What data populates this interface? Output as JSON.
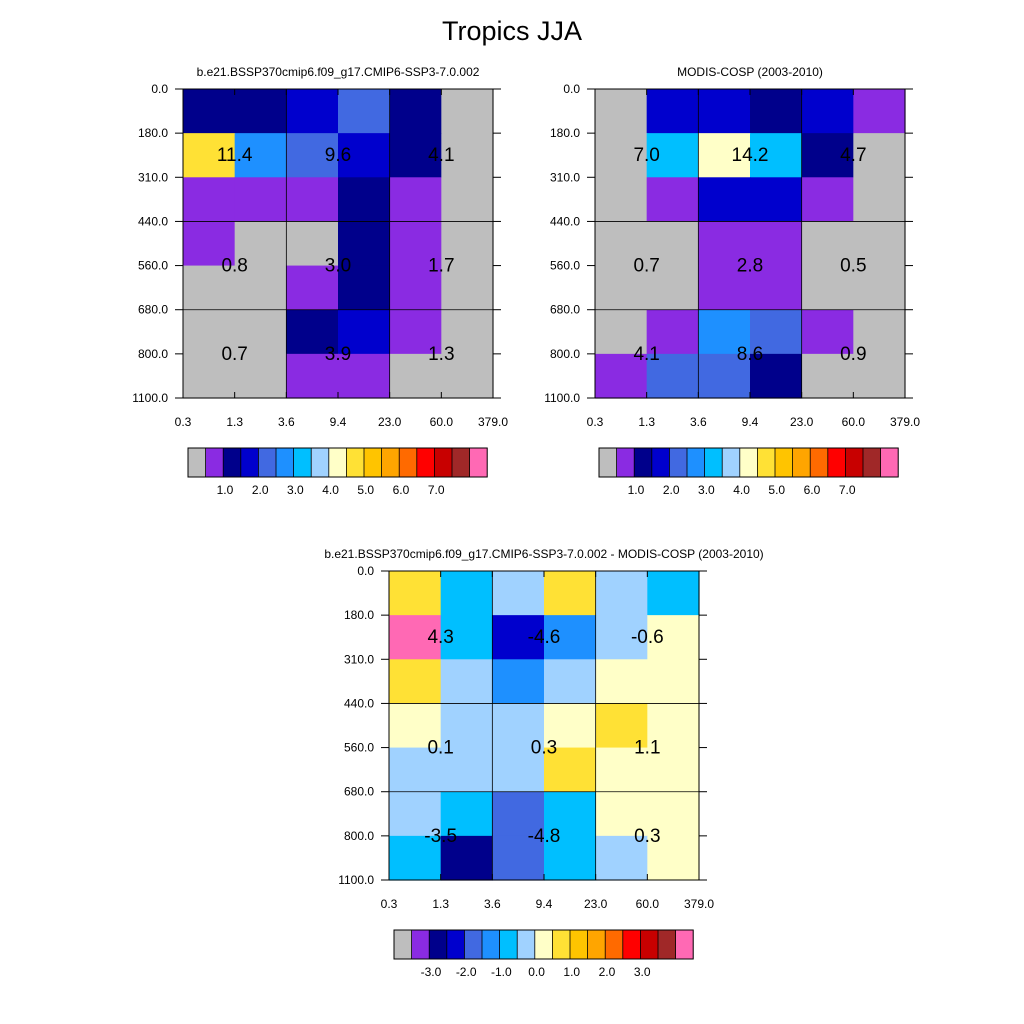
{
  "page_title": "Tropics JJA",
  "colors": {
    "abs_palette": [
      "#bebebe",
      "#8a2be2",
      "#00008b",
      "#0000cd",
      "#4169e1",
      "#1e90ff",
      "#00bfff",
      "#a0d2ff",
      "#ffffc8",
      "#ffe135",
      "#ffc400",
      "#ffa500",
      "#ff6a00",
      "#ff0000",
      "#c80000",
      "#a02828",
      "#ff69b4"
    ],
    "diff_palette": [
      "#bebebe",
      "#8a2be2",
      "#00008b",
      "#0000cd",
      "#4169e1",
      "#1e90ff",
      "#00bfff",
      "#a0d2ff",
      "#ffffc8",
      "#ffe135",
      "#ffc400",
      "#ffa500",
      "#ff6a00",
      "#ff0000",
      "#c80000",
      "#a02828",
      "#ff69b4"
    ]
  },
  "chart_data": [
    {
      "type": "heatmap",
      "title": "b.e21.BSSP370cmip6.f09_g17.CMIP6-SSP3-7.0.002",
      "x_tick_labels": [
        "0.3",
        "1.3",
        "3.6",
        "9.4",
        "23.0",
        "60.0",
        "379.0"
      ],
      "y_tick_labels": [
        "0.0",
        "180.0",
        "310.0",
        "440.0",
        "560.0",
        "680.0",
        "800.0",
        "1100.0"
      ],
      "grid": true,
      "cell_color_index": [
        [
          2,
          2,
          3,
          4,
          2,
          0
        ],
        [
          9,
          5,
          4,
          3,
          2,
          0
        ],
        [
          1,
          1,
          1,
          2,
          1,
          0
        ],
        [
          1,
          0,
          0,
          2,
          1,
          0
        ],
        [
          0,
          0,
          1,
          2,
          1,
          0
        ],
        [
          0,
          0,
          2,
          3,
          1,
          0
        ],
        [
          0,
          0,
          1,
          1,
          0,
          0
        ]
      ],
      "block_values": [
        [
          "11.4",
          "9.6",
          "4.1"
        ],
        [
          "0.8",
          "3.0",
          "1.7"
        ],
        [
          "0.7",
          "3.9",
          "1.3"
        ]
      ],
      "colorbar_labels": [
        "1.0",
        "2.0",
        "3.0",
        "4.0",
        "5.0",
        "6.0",
        "7.0"
      ]
    },
    {
      "type": "heatmap",
      "title": "MODIS-COSP (2003-2010)",
      "x_tick_labels": [
        "0.3",
        "1.3",
        "3.6",
        "9.4",
        "23.0",
        "60.0",
        "379.0"
      ],
      "y_tick_labels": [
        "0.0",
        "180.0",
        "310.0",
        "440.0",
        "560.0",
        "680.0",
        "800.0",
        "1100.0"
      ],
      "grid": true,
      "cell_color_index": [
        [
          0,
          3,
          3,
          2,
          3,
          1
        ],
        [
          0,
          6,
          8,
          6,
          2,
          0
        ],
        [
          0,
          1,
          3,
          3,
          1,
          0
        ],
        [
          0,
          0,
          1,
          1,
          0,
          0
        ],
        [
          0,
          0,
          1,
          1,
          0,
          0
        ],
        [
          0,
          1,
          5,
          4,
          1,
          0
        ],
        [
          1,
          4,
          4,
          2,
          0,
          0
        ]
      ],
      "block_values": [
        [
          "7.0",
          "14.2",
          "4.7"
        ],
        [
          "0.7",
          "2.8",
          "0.5"
        ],
        [
          "4.1",
          "8.6",
          "0.9"
        ]
      ],
      "colorbar_labels": [
        "1.0",
        "2.0",
        "3.0",
        "4.0",
        "5.0",
        "6.0",
        "7.0"
      ]
    },
    {
      "type": "heatmap",
      "title": "b.e21.BSSP370cmip6.f09_g17.CMIP6-SSP3-7.0.002 - MODIS-COSP (2003-2010)",
      "x_tick_labels": [
        "0.3",
        "1.3",
        "3.6",
        "9.4",
        "23.0",
        "60.0",
        "379.0"
      ],
      "y_tick_labels": [
        "0.0",
        "180.0",
        "310.0",
        "440.0",
        "560.0",
        "680.0",
        "800.0",
        "1100.0"
      ],
      "grid": true,
      "cell_color_index": [
        [
          9,
          6,
          7,
          9,
          7,
          6
        ],
        [
          16,
          6,
          3,
          5,
          7,
          8
        ],
        [
          9,
          7,
          5,
          7,
          8,
          8
        ],
        [
          8,
          7,
          7,
          8,
          9,
          8
        ],
        [
          7,
          7,
          7,
          9,
          8,
          8
        ],
        [
          7,
          6,
          4,
          6,
          8,
          8
        ],
        [
          6,
          2,
          4,
          6,
          7,
          8
        ]
      ],
      "block_values": [
        [
          "4.3",
          "-4.6",
          "-0.6"
        ],
        [
          "0.1",
          "0.3",
          "1.1"
        ],
        [
          "-3.5",
          "-4.8",
          "0.3"
        ]
      ],
      "colorbar_labels": [
        "-3.0",
        "-2.0",
        "-1.0",
        "0.0",
        "1.0",
        "2.0",
        "3.0"
      ]
    }
  ]
}
